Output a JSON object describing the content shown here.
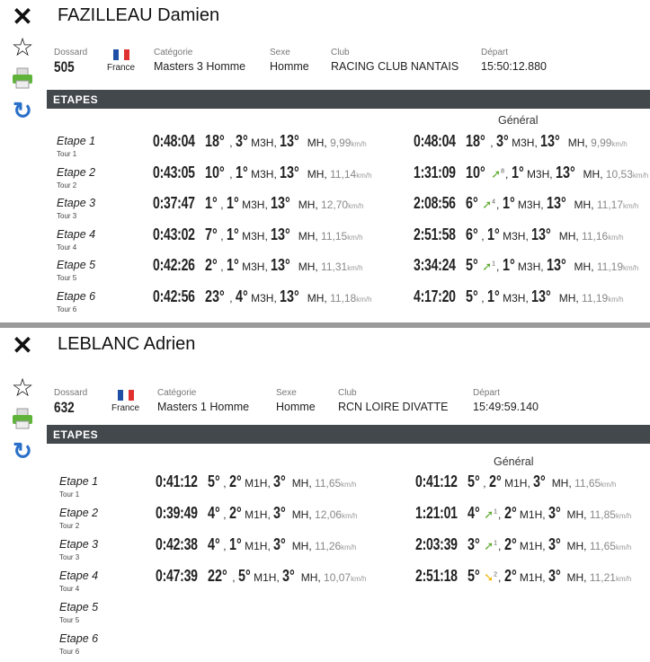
{
  "labels": {
    "dossard": "Dossard",
    "categorie": "Catégorie",
    "sexe": "Sexe",
    "club": "Club",
    "depart": "Départ",
    "etapes": "ETAPES",
    "general": "Général",
    "kmh": "km/h",
    "mh": "MH"
  },
  "colors": {
    "bar": "#43484c",
    "trend_up": "#5aa92a",
    "trend_down": "#f0b400",
    "refresh": "#2a6fc9"
  },
  "icons": [
    "close-icon",
    "star-icon",
    "printer-icon",
    "refresh-icon"
  ],
  "riders": [
    {
      "name": "FAZILLEAU Damien",
      "dossard": "505",
      "country": "France",
      "categorie": "Masters 3 Homme",
      "sexe": "Homme",
      "club": "RACING CLUB NANTAIS",
      "depart": "15:50:12.880",
      "cat": "M3H",
      "etapes": [
        {
          "label": "Etape 1",
          "tour": "Tour 1",
          "stage": {
            "time": "0:48:04",
            "rank": "18°",
            "cat_rank": "3°",
            "mh_rank": "13°",
            "speed": "9,99"
          },
          "general": {
            "time": "0:48:04",
            "rank": "18°",
            "trend": "",
            "trend_n": "",
            "cat_rank": "3°",
            "mh_rank": "13°",
            "speed": "9,99"
          }
        },
        {
          "label": "Etape 2",
          "tour": "Tour 2",
          "stage": {
            "time": "0:43:05",
            "rank": "10°",
            "cat_rank": "1°",
            "mh_rank": "13°",
            "speed": "11,14"
          },
          "general": {
            "time": "1:31:09",
            "rank": "10°",
            "trend": "up",
            "trend_n": "8",
            "cat_rank": "1°",
            "mh_rank": "13°",
            "speed": "10,53"
          }
        },
        {
          "label": "Etape 3",
          "tour": "Tour 3",
          "stage": {
            "time": "0:37:47",
            "rank": "1°",
            "cat_rank": "1°",
            "mh_rank": "13°",
            "speed": "12,70"
          },
          "general": {
            "time": "2:08:56",
            "rank": "6°",
            "trend": "up",
            "trend_n": "4",
            "cat_rank": "1°",
            "mh_rank": "13°",
            "speed": "11,17"
          }
        },
        {
          "label": "Etape 4",
          "tour": "Tour 4",
          "stage": {
            "time": "0:43:02",
            "rank": "7°",
            "cat_rank": "1°",
            "mh_rank": "13°",
            "speed": "11,15"
          },
          "general": {
            "time": "2:51:58",
            "rank": "6°",
            "trend": "",
            "trend_n": "",
            "cat_rank": "1°",
            "mh_rank": "13°",
            "speed": "11,16"
          }
        },
        {
          "label": "Etape 5",
          "tour": "Tour 5",
          "stage": {
            "time": "0:42:26",
            "rank": "2°",
            "cat_rank": "1°",
            "mh_rank": "13°",
            "speed": "11,31"
          },
          "general": {
            "time": "3:34:24",
            "rank": "5°",
            "trend": "up",
            "trend_n": "1",
            "cat_rank": "1°",
            "mh_rank": "13°",
            "speed": "11,19"
          }
        },
        {
          "label": "Etape 6",
          "tour": "Tour 6",
          "stage": {
            "time": "0:42:56",
            "rank": "23°",
            "cat_rank": "4°",
            "mh_rank": "13°",
            "speed": "11,18"
          },
          "general": {
            "time": "4:17:20",
            "rank": "5°",
            "trend": "",
            "trend_n": "",
            "cat_rank": "1°",
            "mh_rank": "13°",
            "speed": "11,19"
          }
        }
      ]
    },
    {
      "name": "LEBLANC Adrien",
      "dossard": "632",
      "country": "France",
      "categorie": "Masters 1 Homme",
      "sexe": "Homme",
      "club": "RCN LOIRE DIVATTE",
      "depart": "15:49:59.140",
      "cat": "M1H",
      "etapes": [
        {
          "label": "Etape 1",
          "tour": "Tour 1",
          "stage": {
            "time": "0:41:12",
            "rank": "5°",
            "cat_rank": "2°",
            "mh_rank": "3°",
            "speed": "11,65"
          },
          "general": {
            "time": "0:41:12",
            "rank": "5°",
            "trend": "",
            "trend_n": "",
            "cat_rank": "2°",
            "mh_rank": "3°",
            "speed": "11,65"
          }
        },
        {
          "label": "Etape 2",
          "tour": "Tour 2",
          "stage": {
            "time": "0:39:49",
            "rank": "4°",
            "cat_rank": "2°",
            "mh_rank": "3°",
            "speed": "12,06"
          },
          "general": {
            "time": "1:21:01",
            "rank": "4°",
            "trend": "up",
            "trend_n": "1",
            "cat_rank": "2°",
            "mh_rank": "3°",
            "speed": "11,85"
          }
        },
        {
          "label": "Etape 3",
          "tour": "Tour 3",
          "stage": {
            "time": "0:42:38",
            "rank": "4°",
            "cat_rank": "1°",
            "mh_rank": "3°",
            "speed": "11,26"
          },
          "general": {
            "time": "2:03:39",
            "rank": "3°",
            "trend": "up",
            "trend_n": "1",
            "cat_rank": "2°",
            "mh_rank": "3°",
            "speed": "11,65"
          }
        },
        {
          "label": "Etape 4",
          "tour": "Tour 4",
          "stage": {
            "time": "0:47:39",
            "rank": "22°",
            "cat_rank": "5°",
            "mh_rank": "3°",
            "speed": "10,07"
          },
          "general": {
            "time": "2:51:18",
            "rank": "5°",
            "trend": "down",
            "trend_n": "2",
            "cat_rank": "2°",
            "mh_rank": "3°",
            "speed": "11,21"
          }
        },
        {
          "label": "Etape 5",
          "tour": "Tour 5"
        },
        {
          "label": "Etape 6",
          "tour": "Tour 6"
        }
      ]
    }
  ]
}
